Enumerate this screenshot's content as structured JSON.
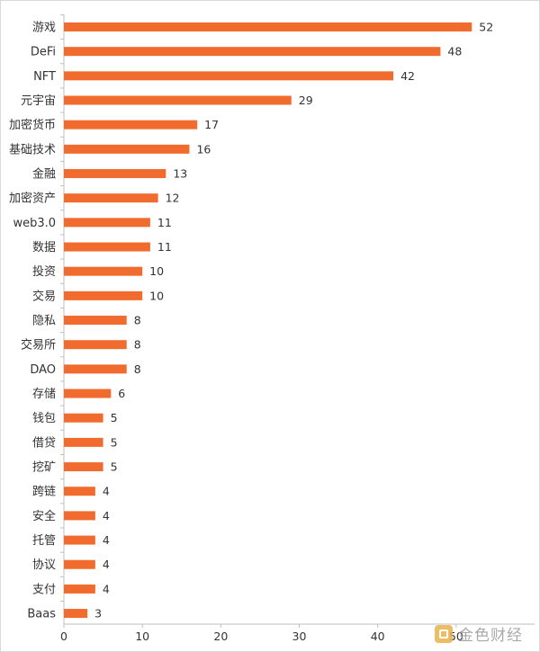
{
  "chart_data": {
    "type": "bar",
    "orientation": "horizontal",
    "categories": [
      "游戏",
      "DeFi",
      "NFT",
      "元宇宙",
      "加密货币",
      "基础技术",
      "金融",
      "加密资产",
      "web3.0",
      "数据",
      "投资",
      "交易",
      "隐私",
      "交易所",
      "DAO",
      "存储",
      "钱包",
      "借贷",
      "挖矿",
      "跨链",
      "安全",
      "托管",
      "协议",
      "支付",
      "Baas"
    ],
    "values": [
      52,
      48,
      42,
      29,
      17,
      16,
      13,
      12,
      11,
      11,
      10,
      10,
      8,
      8,
      8,
      6,
      5,
      5,
      5,
      4,
      4,
      4,
      4,
      4,
      3
    ],
    "x_ticks": [
      "0",
      "10",
      "20",
      "30",
      "40",
      "50"
    ],
    "xlim": [
      0,
      60
    ],
    "grid": false,
    "legend": "none",
    "title": "",
    "xlabel": "",
    "ylabel": "",
    "colors": {
      "bar": "#f26b2e",
      "axis": "#bfbfbf",
      "text": "#333333"
    }
  },
  "watermark": {
    "text": "金色财经",
    "icon": "jinse-logo-icon"
  }
}
